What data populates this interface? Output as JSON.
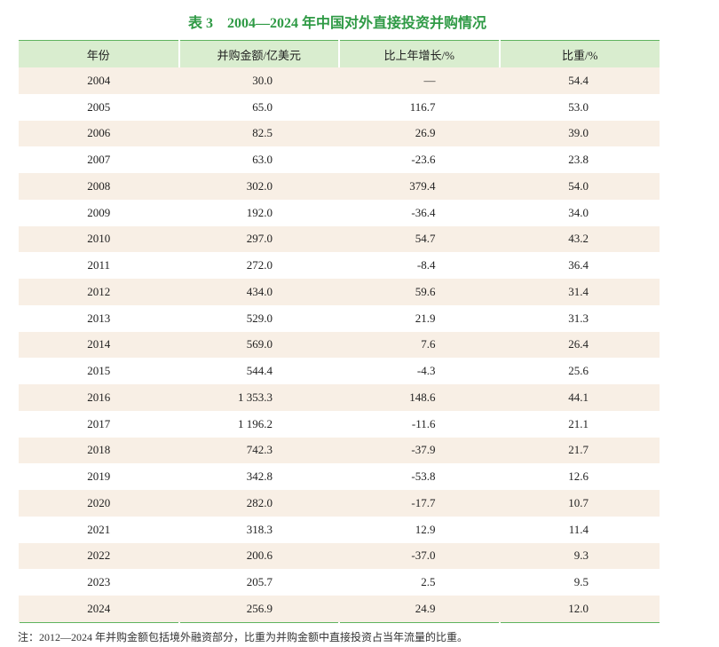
{
  "title": "表 3　2004—2024 年中国对外直接投资并购情况",
  "table": {
    "header": [
      "年份",
      "并购金额/亿美元",
      "比上年增长/%",
      "比重/%"
    ],
    "rows": [
      [
        "2004",
        "30.0",
        "—",
        "54.4"
      ],
      [
        "2005",
        "65.0",
        "116.7",
        "53.0"
      ],
      [
        "2006",
        "82.5",
        "26.9",
        "39.0"
      ],
      [
        "2007",
        "63.0",
        "-23.6",
        "23.8"
      ],
      [
        "2008",
        "302.0",
        "379.4",
        "54.0"
      ],
      [
        "2009",
        "192.0",
        "-36.4",
        "34.0"
      ],
      [
        "2010",
        "297.0",
        "54.7",
        "43.2"
      ],
      [
        "2011",
        "272.0",
        "-8.4",
        "36.4"
      ],
      [
        "2012",
        "434.0",
        "59.6",
        "31.4"
      ],
      [
        "2013",
        "529.0",
        "21.9",
        "31.3"
      ],
      [
        "2014",
        "569.0",
        "7.6",
        "26.4"
      ],
      [
        "2015",
        "544.4",
        "-4.3",
        "25.6"
      ],
      [
        "2016",
        "1 353.3",
        "148.6",
        "44.1"
      ],
      [
        "2017",
        "1 196.2",
        "-11.6",
        "21.1"
      ],
      [
        "2018",
        "742.3",
        "-37.9",
        "21.7"
      ],
      [
        "2019",
        "342.8",
        "-53.8",
        "12.6"
      ],
      [
        "2020",
        "282.0",
        "-17.7",
        "10.7"
      ],
      [
        "2021",
        "318.3",
        "12.9",
        "11.4"
      ],
      [
        "2022",
        "200.6",
        "-37.0",
        "9.3"
      ],
      [
        "2023",
        "205.7",
        "2.5",
        "9.5"
      ],
      [
        "2024",
        "256.9",
        "24.9",
        "12.0"
      ]
    ]
  },
  "note": "注：2012—2024 年并购金额包括境外融资部分，比重为并购金额中直接投资占当年流量的比重。"
}
